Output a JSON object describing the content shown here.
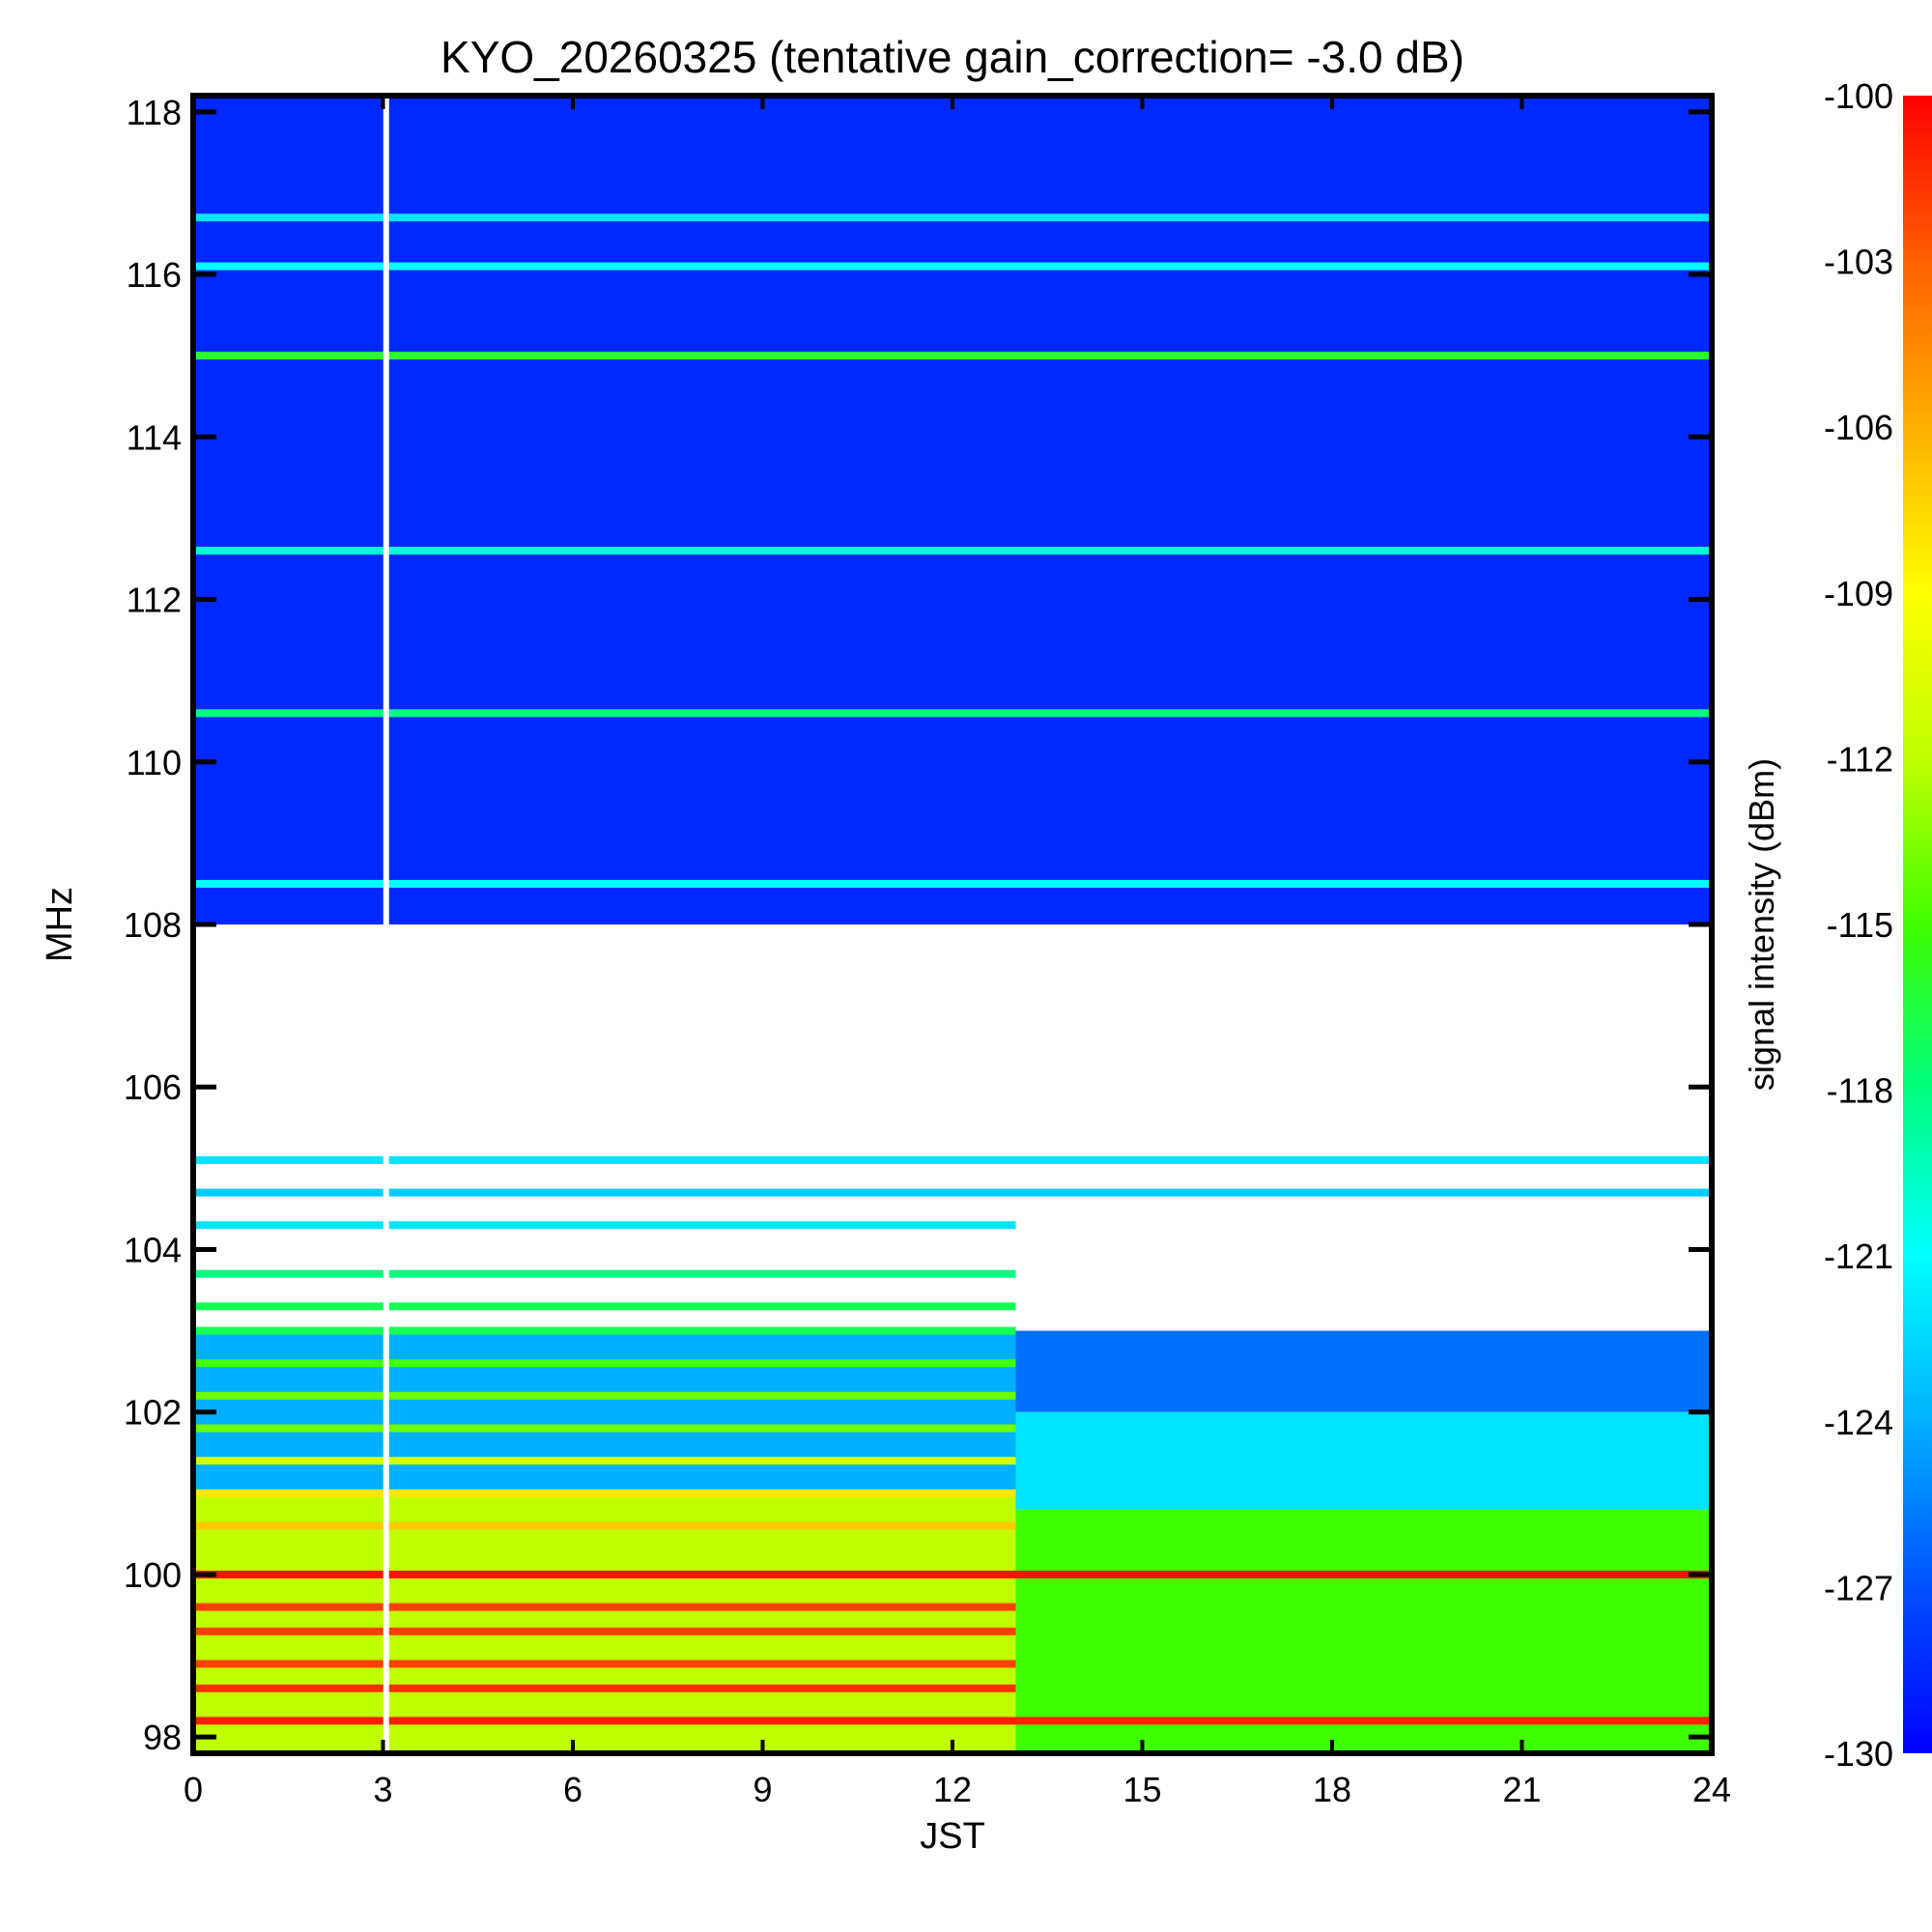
{
  "chart_data": {
    "type": "heatmap",
    "title": "KYO_20260325 (tentative gain_correction= -3.0 dB)",
    "xlabel": "JST",
    "ylabel": "MHz",
    "colorbar_label": "signal intensity (dBm)",
    "xlim": [
      0,
      24
    ],
    "ylim": [
      97.8,
      118.2
    ],
    "x_ticks": [
      "0",
      "3",
      "6",
      "9",
      "12",
      "15",
      "18",
      "21",
      "24"
    ],
    "y_ticks": [
      "98",
      "100",
      "102",
      "104",
      "106",
      "108",
      "110",
      "112",
      "114",
      "116",
      "118"
    ],
    "colorbar_range": [
      -130,
      -100
    ],
    "colorbar_ticks": [
      "-100",
      "-103",
      "-106",
      "-109",
      "-112",
      "-115",
      "-118",
      "-121",
      "-124",
      "-127",
      "-130"
    ],
    "colormap": [
      "#0000ff",
      "#0050ff",
      "#00b0ff",
      "#00ffff",
      "#00ff80",
      "#40ff00",
      "#c0ff00",
      "#ffff00",
      "#ffb000",
      "#ff6000",
      "#ff0000"
    ],
    "data_gap_time_jst": 3.05,
    "bands": [
      {
        "freq": 98.2,
        "level": -101,
        "until": 24
      },
      {
        "freq": 98.6,
        "level": -101.5,
        "until": 13
      },
      {
        "freq": 98.9,
        "level": -102,
        "until": 13
      },
      {
        "freq": 99.3,
        "level": -102,
        "until": 13
      },
      {
        "freq": 99.6,
        "level": -102,
        "until": 13
      },
      {
        "freq": 100.0,
        "level": -100.5,
        "until": 24
      },
      {
        "freq": 100.6,
        "level": -107,
        "until": 13
      },
      {
        "freq": 101.0,
        "level": -108,
        "until": 13
      },
      {
        "freq": 101.4,
        "level": -111,
        "until": 13
      },
      {
        "freq": 101.8,
        "level": -114,
        "until": 13
      },
      {
        "freq": 102.2,
        "level": -114,
        "until": 13
      },
      {
        "freq": 102.6,
        "level": -115,
        "until": 13
      },
      {
        "freq": 103.0,
        "level": -117,
        "until": 13
      },
      {
        "freq": 103.3,
        "level": -117,
        "until": 13
      },
      {
        "freq": 103.7,
        "level": -118,
        "until": 13
      },
      {
        "freq": 104.3,
        "level": -122,
        "until": 13
      },
      {
        "freq": 104.7,
        "level": -123,
        "until": 24
      },
      {
        "freq": 105.1,
        "level": -122,
        "until": 24
      },
      {
        "freq": 108.5,
        "level": -121,
        "until": 24
      },
      {
        "freq": 110.6,
        "level": -118,
        "until": 24
      },
      {
        "freq": 112.6,
        "level": -120,
        "until": 24
      },
      {
        "freq": 115.0,
        "level": -116,
        "until": 24
      },
      {
        "freq": 116.1,
        "level": -121,
        "until": 24
      },
      {
        "freq": 116.7,
        "level": -122,
        "until": 24
      }
    ]
  }
}
